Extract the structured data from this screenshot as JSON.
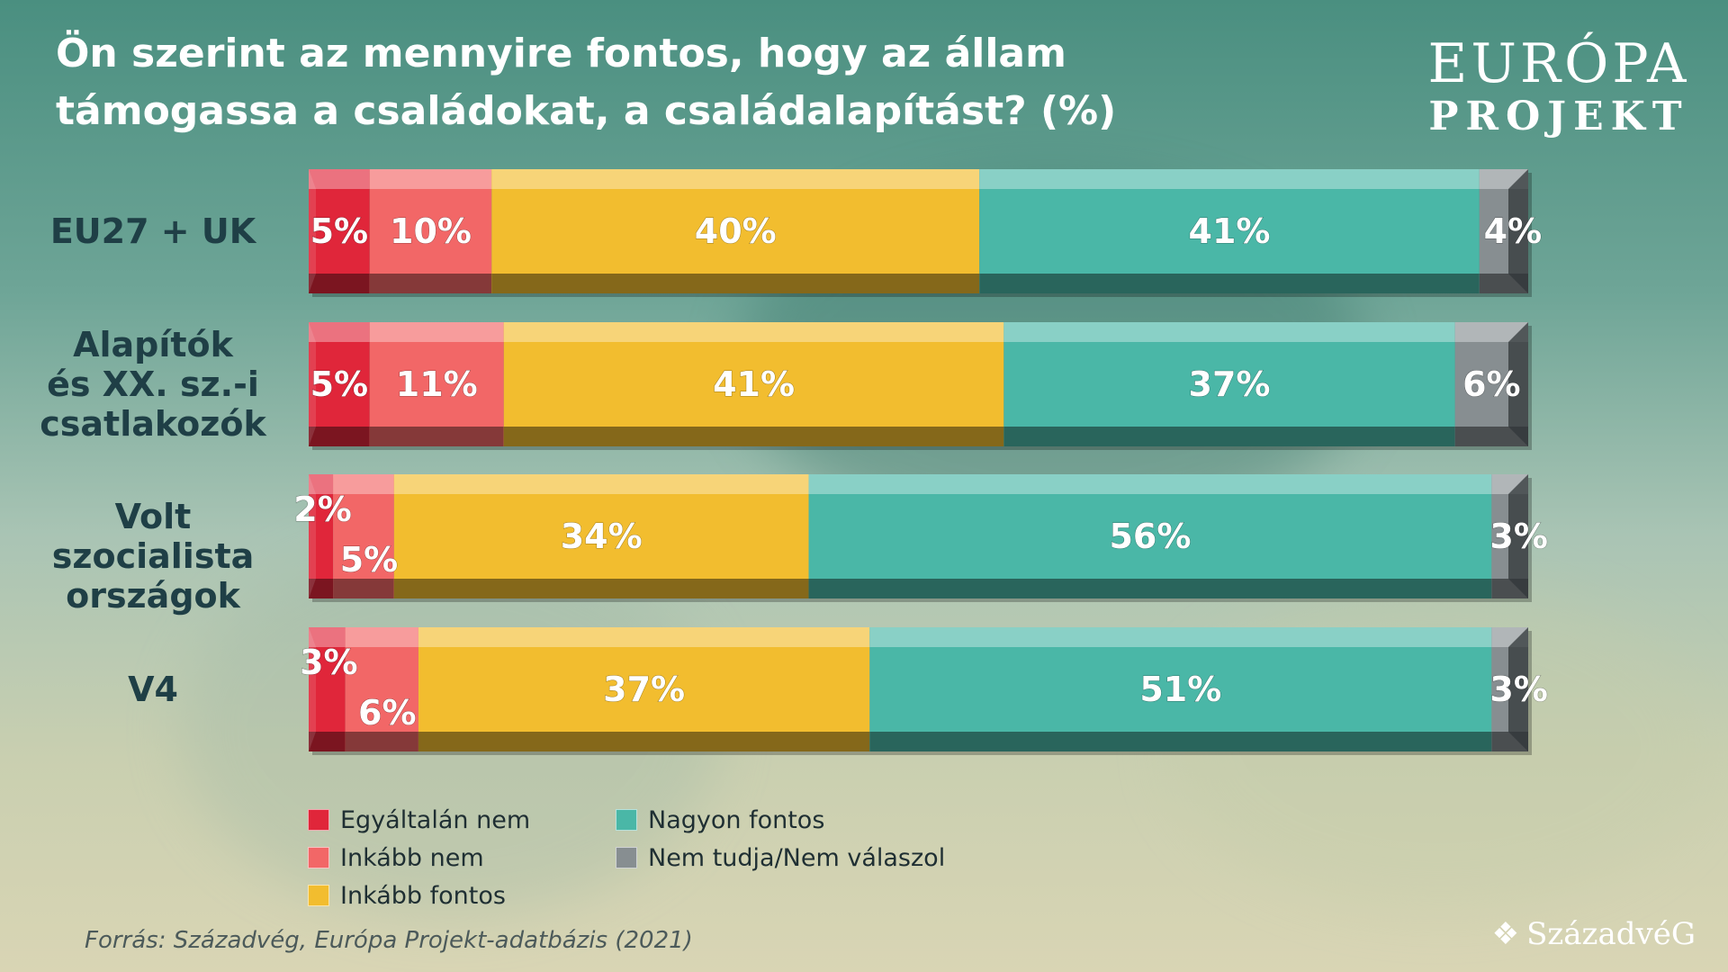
{
  "title": "Ön szerint az mennyire fontos, hogy az állam támogassa a családokat, a családalapítást? (%)",
  "logo": {
    "top": "EURÓPA",
    "bottom": "PROJEKT"
  },
  "brand": {
    "name": "SzázadvéG",
    "mark": "❖"
  },
  "source": "Forrás: Századvég, Európa Projekt-adatbázis (2021)",
  "chart_data": {
    "type": "bar",
    "orientation": "horizontal",
    "stacked": true,
    "title": "Ön szerint az mennyire fontos, hogy az állam támogassa a családokat, a családalapítást? (%)",
    "categories": [
      "EU27 + UK",
      "Alapítók és XX. sz.-i csatlakozók",
      "Volt szocialista országok",
      "V4"
    ],
    "category_lines": [
      [
        "EU27 + UK"
      ],
      [
        "Alapítók",
        "és XX. sz.-i",
        "csatlakozók"
      ],
      [
        "Volt szocialista",
        "országok"
      ],
      [
        "V4"
      ]
    ],
    "xlim": [
      0,
      100
    ],
    "legend_position": "bottom-left",
    "series": [
      {
        "name": "Egyáltalán nem",
        "color": "#e0263a",
        "values": [
          5,
          5,
          2,
          3
        ]
      },
      {
        "name": "Inkább nem",
        "color": "#f26767",
        "values": [
          10,
          11,
          5,
          6
        ]
      },
      {
        "name": "Inkább fontos",
        "color": "#f2bd2f",
        "values": [
          40,
          41,
          34,
          37
        ]
      },
      {
        "name": "Nagyon fontos",
        "color": "#4ab7a7",
        "values": [
          41,
          37,
          56,
          51
        ]
      },
      {
        "name": "Nem tudja/Nem válaszol",
        "color": "#878e91",
        "values": [
          4,
          6,
          3,
          3
        ]
      }
    ]
  }
}
